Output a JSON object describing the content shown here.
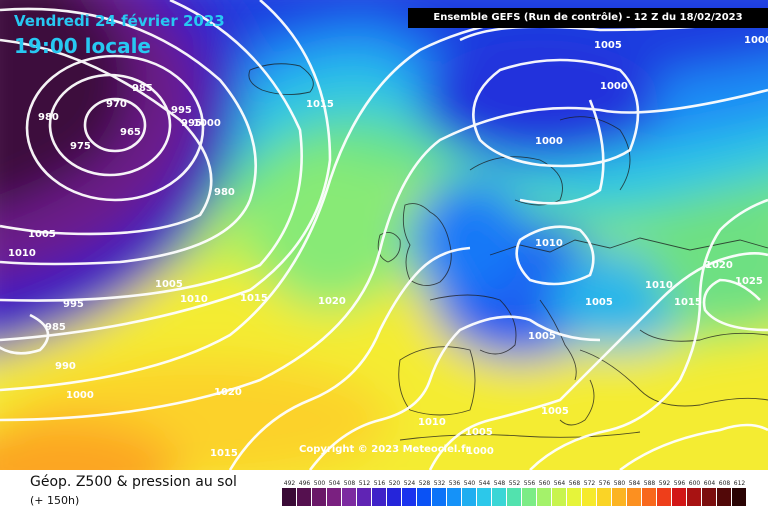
{
  "header": {
    "date": "Vendredi 24 février 2023",
    "time": "19:00 locale",
    "model": "Ensemble GEFS  (Run de contrôle)  -  12 Z du 18/02/2023"
  },
  "footer": {
    "title": "Géop. Z500 & pression au sol",
    "hour": "(+ 150h)",
    "copyright": "Copyright © 2023 Meteociel.fr"
  },
  "scale": {
    "values": [
      "492",
      "496",
      "500",
      "504",
      "508",
      "512",
      "516",
      "520",
      "524",
      "528",
      "532",
      "536",
      "540",
      "544",
      "548",
      "552",
      "556",
      "560",
      "564",
      "568",
      "572",
      "576",
      "580",
      "584",
      "588",
      "592",
      "596",
      "600",
      "604",
      "608",
      "612"
    ],
    "colors": [
      "#3a0a36",
      "#55104f",
      "#6a1868",
      "#7a2080",
      "#7c2aa0",
      "#6024b4",
      "#3f22c8",
      "#2525da",
      "#1a33ee",
      "#0a52f5",
      "#0c73f8",
      "#1592f8",
      "#20aef0",
      "#2cc8ea",
      "#3ad6d6",
      "#52e2ae",
      "#7cec86",
      "#a4f26a",
      "#c8f44e",
      "#e6f43a",
      "#f6ea2c",
      "#fad426",
      "#fcb422",
      "#fc9020",
      "#f8681c",
      "#ee3e1a",
      "#d21616",
      "#a81212",
      "#7c0e0e",
      "#520808",
      "#2a0404"
    ]
  },
  "isobars": [
    "1000",
    "1005",
    "1000",
    "1000",
    "1015",
    "985",
    "970",
    "965",
    "975",
    "980",
    "995",
    "995",
    "1000",
    "980",
    "1005",
    "1010",
    "1005",
    "1010",
    "1015",
    "1020",
    "995",
    "985",
    "990",
    "1000",
    "1020",
    "1015",
    "1010",
    "1005",
    "1000",
    "1010",
    "1005",
    "1005",
    "1010",
    "1015",
    "1020",
    "1025",
    "1005"
  ]
}
